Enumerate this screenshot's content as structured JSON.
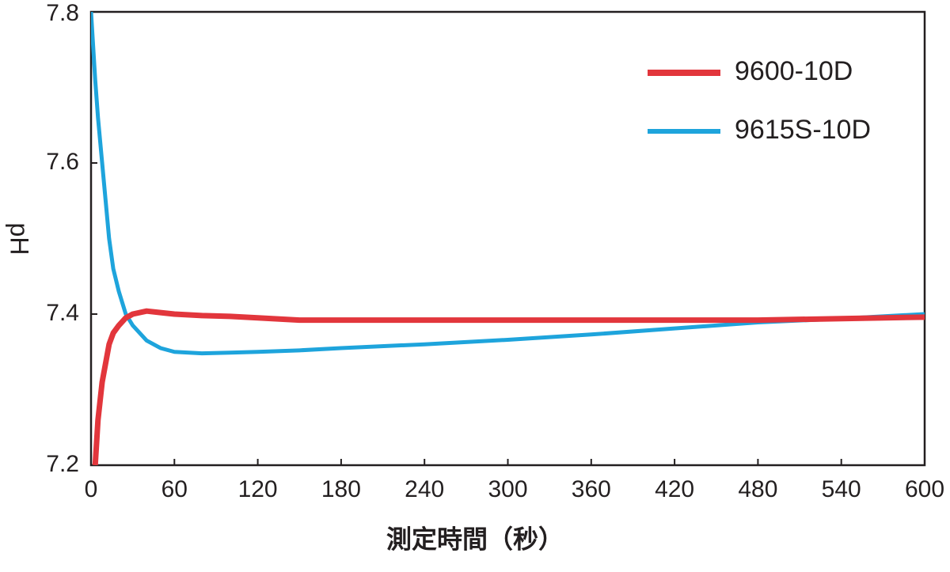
{
  "chart_data": {
    "type": "line",
    "x_label": "測定時間（秒）",
    "y_label": "pH",
    "x": [
      0,
      3,
      5,
      8,
      10,
      13,
      16,
      20,
      25,
      30,
      40,
      50,
      60,
      80,
      100,
      120,
      150,
      180,
      240,
      300,
      360,
      420,
      480,
      540,
      600
    ],
    "series": [
      {
        "name": "9600-10D",
        "color": "#e2363c",
        "values": [
          null,
          7.2,
          7.26,
          7.31,
          7.33,
          7.36,
          7.375,
          7.385,
          7.395,
          7.4,
          7.404,
          7.402,
          7.4,
          7.398,
          7.397,
          7.395,
          7.392,
          7.392,
          7.392,
          7.392,
          7.392,
          7.392,
          7.392,
          7.394,
          7.396
        ]
      },
      {
        "name": "9615S-10D",
        "color": "#1ea4dc",
        "values": [
          7.8,
          7.71,
          7.66,
          7.6,
          7.56,
          7.5,
          7.46,
          7.43,
          7.4,
          7.385,
          7.365,
          7.355,
          7.35,
          7.348,
          7.349,
          7.35,
          7.352,
          7.355,
          7.36,
          7.366,
          7.373,
          7.381,
          7.389,
          7.394,
          7.4
        ]
      }
    ],
    "xlim": [
      0,
      600
    ],
    "xticks": [
      0,
      60,
      120,
      180,
      240,
      300,
      360,
      420,
      480,
      540,
      600
    ],
    "ylim": [
      7.2,
      7.8
    ],
    "yticks": [
      7.2,
      7.4,
      7.6,
      7.8
    ],
    "legend": "upper-right"
  }
}
